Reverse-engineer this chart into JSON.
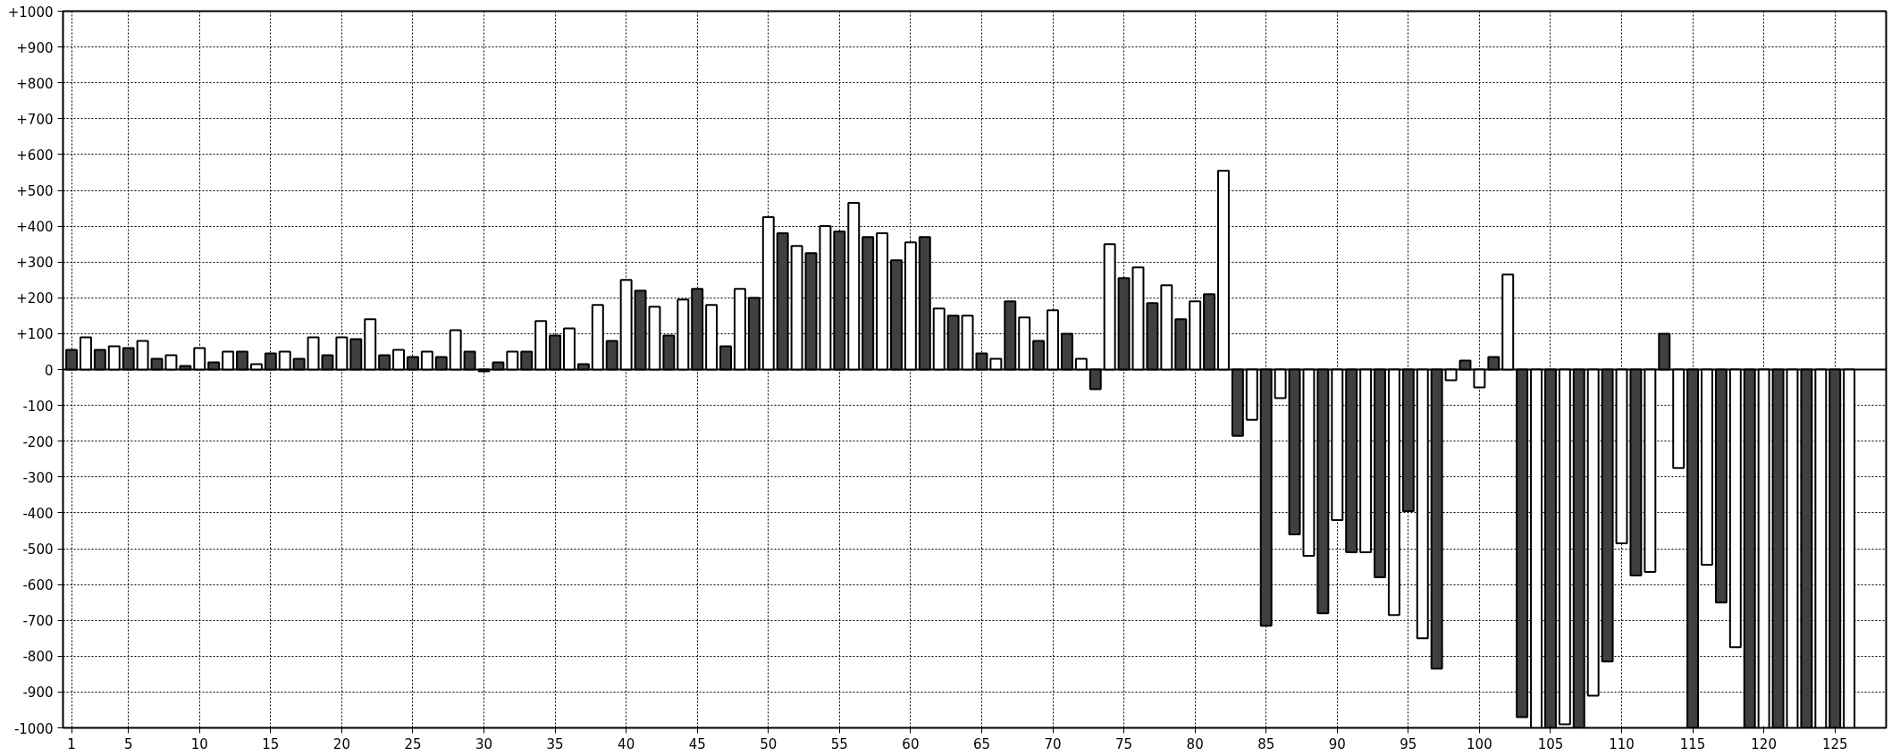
{
  "chart_data": {
    "type": "bar",
    "x": [
      1,
      2,
      3,
      4,
      5,
      6,
      7,
      8,
      9,
      10,
      11,
      12,
      13,
      14,
      15,
      16,
      17,
      18,
      19,
      20,
      21,
      22,
      23,
      24,
      25,
      26,
      27,
      28,
      29,
      30,
      31,
      32,
      33,
      34,
      35,
      36,
      37,
      38,
      39,
      40,
      41,
      42,
      43,
      44,
      45,
      46,
      47,
      48,
      49,
      50,
      51,
      52,
      53,
      54,
      55,
      56,
      57,
      58,
      59,
      60,
      61,
      62,
      63,
      64,
      65,
      66,
      67,
      68,
      69,
      70,
      71,
      72,
      73,
      74,
      75,
      76,
      77,
      78,
      79,
      80,
      81,
      82,
      83,
      84,
      85,
      86,
      87,
      88,
      89,
      90,
      91,
      92,
      93,
      94,
      95,
      96,
      97,
      98,
      99,
      100,
      101,
      102,
      103,
      104,
      105,
      106,
      107,
      108,
      109,
      110,
      111,
      112,
      113,
      114,
      115,
      116,
      117,
      118,
      119,
      120,
      121,
      122,
      123,
      124,
      125,
      126
    ],
    "values": [
      55,
      90,
      55,
      65,
      60,
      80,
      30,
      40,
      10,
      60,
      20,
      50,
      50,
      15,
      45,
      50,
      30,
      90,
      40,
      90,
      85,
      140,
      40,
      55,
      35,
      50,
      35,
      110,
      50,
      -5,
      20,
      50,
      50,
      135,
      95,
      115,
      15,
      180,
      80,
      250,
      220,
      175,
      95,
      195,
      225,
      180,
      65,
      225,
      200,
      425,
      380,
      345,
      325,
      400,
      385,
      465,
      370,
      380,
      305,
      355,
      370,
      170,
      150,
      150,
      45,
      30,
      190,
      145,
      80,
      165,
      100,
      30,
      -55,
      350,
      255,
      285,
      185,
      235,
      140,
      190,
      210,
      555,
      -185,
      -140,
      -715,
      -80,
      -460,
      -520,
      -680,
      -420,
      -510,
      -510,
      -580,
      -685,
      -395,
      -750,
      -835,
      -30,
      25,
      -50,
      35,
      265,
      -970,
      -1000,
      -1000,
      -990,
      -1000,
      -910,
      -815,
      -485,
      -575,
      -565,
      100,
      -275,
      -1000,
      -545,
      -650,
      -775,
      -1000,
      -1000,
      -1000,
      -1000,
      -1000,
      -1000,
      -1000,
      -1000
    ],
    "colors": [
      "#404040",
      "#ffffff",
      "#404040",
      "#ffffff",
      "#404040",
      "#ffffff",
      "#404040",
      "#ffffff",
      "#404040",
      "#ffffff",
      "#404040",
      "#ffffff",
      "#404040",
      "#ffffff",
      "#404040",
      "#ffffff",
      "#404040",
      "#ffffff",
      "#404040",
      "#ffffff",
      "#404040",
      "#ffffff",
      "#404040",
      "#ffffff",
      "#404040",
      "#ffffff",
      "#404040",
      "#ffffff",
      "#404040",
      "#ffffff",
      "#404040",
      "#ffffff",
      "#404040",
      "#ffffff",
      "#404040",
      "#ffffff",
      "#404040",
      "#ffffff",
      "#404040",
      "#ffffff",
      "#404040",
      "#ffffff",
      "#404040",
      "#ffffff",
      "#404040",
      "#ffffff",
      "#404040",
      "#ffffff",
      "#404040",
      "#ffffff",
      "#404040",
      "#ffffff",
      "#404040",
      "#ffffff",
      "#404040",
      "#ffffff",
      "#404040",
      "#ffffff",
      "#404040",
      "#ffffff",
      "#404040",
      "#ffffff",
      "#404040",
      "#ffffff",
      "#404040",
      "#ffffff",
      "#404040",
      "#ffffff",
      "#404040",
      "#ffffff",
      "#404040",
      "#ffffff",
      "#404040",
      "#ffffff",
      "#404040",
      "#ffffff",
      "#404040",
      "#ffffff",
      "#404040",
      "#ffffff",
      "#404040",
      "#ffffff",
      "#404040",
      "#ffffff",
      "#404040",
      "#ffffff",
      "#404040",
      "#ffffff",
      "#404040",
      "#ffffff",
      "#404040",
      "#ffffff",
      "#404040",
      "#ffffff",
      "#404040",
      "#ffffff",
      "#404040",
      "#ffffff",
      "#404040",
      "#ffffff",
      "#404040",
      "#ffffff",
      "#404040",
      "#ffffff",
      "#404040",
      "#ffffff",
      "#404040",
      "#ffffff",
      "#404040",
      "#ffffff",
      "#404040",
      "#ffffff",
      "#404040",
      "#ffffff",
      "#404040",
      "#ffffff",
      "#404040",
      "#ffffff",
      "#404040",
      "#ffffff",
      "#404040",
      "#ffffff",
      "#404040",
      "#ffffff",
      "#404040",
      "#ffffff"
    ],
    "xlim": [
      0.4,
      128.6
    ],
    "xticks": [
      1,
      5,
      10,
      15,
      20,
      25,
      30,
      35,
      40,
      45,
      50,
      55,
      60,
      65,
      70,
      75,
      80,
      85,
      90,
      95,
      100,
      105,
      110,
      115,
      120,
      125
    ],
    "ylim": [
      -1000,
      1000
    ],
    "yticks": [
      {
        "value": 1000,
        "label": "+1000"
      },
      {
        "value": 900,
        "label": "+900"
      },
      {
        "value": 800,
        "label": "+800"
      },
      {
        "value": 700,
        "label": "+700"
      },
      {
        "value": 600,
        "label": "+600"
      },
      {
        "value": 500,
        "label": "+500"
      },
      {
        "value": 400,
        "label": "+400"
      },
      {
        "value": 300,
        "label": "+300"
      },
      {
        "value": 200,
        "label": "+200"
      },
      {
        "value": 100,
        "label": "+100"
      },
      0,
      -100,
      -200,
      -300,
      -400,
      -500,
      -600,
      -700,
      -800,
      -900,
      -1000
    ],
    "grid": true
  }
}
